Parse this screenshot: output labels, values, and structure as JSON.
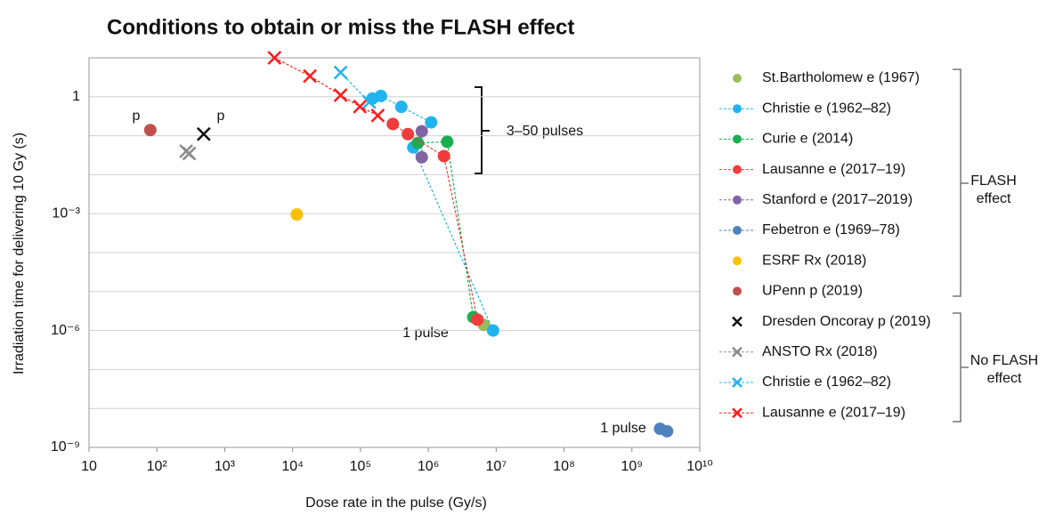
{
  "chart_data": {
    "type": "scatter",
    "title": "Conditions to obtain or miss the FLASH effect",
    "x_label": "Dose rate in the pulse (Gy/s)",
    "y_label": "Irradiation time for delivering 10 Gy (s)",
    "x_scale": "log",
    "y_scale": "log",
    "grid": true,
    "xlim": [
      10,
      10000000000
    ],
    "ylim": [
      1e-09,
      10
    ],
    "xticks": [
      10,
      {
        "value": 100,
        "label": "10²"
      },
      {
        "value": 1000,
        "label": "10³"
      },
      {
        "value": 10000,
        "label": "10⁴"
      },
      {
        "value": 100000,
        "label": "10⁵"
      },
      {
        "value": 1000000,
        "label": "10⁶"
      },
      {
        "value": 10000000,
        "label": "10⁷"
      },
      {
        "value": 100000000,
        "label": "10⁸"
      },
      {
        "value": 1000000000,
        "label": "10⁹"
      },
      {
        "value": 10000000000,
        "label": "10¹⁰"
      }
    ],
    "yticks": [
      1,
      {
        "value": 0.001,
        "label": "10⁻³"
      },
      {
        "value": 1e-06,
        "label": "10⁻⁶"
      },
      {
        "value": 1e-09,
        "label": "10⁻⁹"
      }
    ],
    "yminor": [
      10,
      0.1,
      0.01,
      0.0001,
      1e-05,
      1e-07,
      1e-08
    ],
    "series": [
      {
        "name": "St.Bartholomew e (1967)",
        "color": "#9bbb59",
        "marker": "o",
        "dashed": false,
        "x": [
          6600000
        ],
        "y": [
          1.4e-06
        ]
      },
      {
        "name": "Christie e (1962–82)",
        "color": "#1fb4ef",
        "marker": "o",
        "dashed": true,
        "x": [
          150000,
          200000,
          400000,
          1100000,
          600000,
          9000000
        ],
        "y": [
          0.9,
          1.05,
          0.55,
          0.22,
          0.05,
          1e-06
        ]
      },
      {
        "name": "Curie e (2014)",
        "color": "#1aae4f",
        "marker": "o",
        "dashed": true,
        "x": [
          700000,
          1900000,
          4600000
        ],
        "y": [
          0.065,
          0.07,
          2.2e-06
        ]
      },
      {
        "name": "Lausanne e (2017–19)",
        "color": "#f03c3c",
        "marker": "o",
        "dashed": true,
        "x": [
          300000,
          500000,
          1700000,
          5300000
        ],
        "y": [
          0.2,
          0.11,
          0.03,
          1.9e-06
        ]
      },
      {
        "name": "Stanford e (2017–2019)",
        "color": "#8064a2",
        "marker": "o",
        "dashed": true,
        "x": [
          800000,
          800000
        ],
        "y": [
          0.13,
          0.028
        ]
      },
      {
        "name": "Febetron e (1969–78)",
        "color": "#4f81bd",
        "marker": "o",
        "dashed": true,
        "x": [
          2600000000,
          3300000000
        ],
        "y": [
          3e-09,
          2.6e-09
        ]
      },
      {
        "name": "ESRF Rx (2018)",
        "color": "#ffc000",
        "marker": "o",
        "dashed": false,
        "x": [
          11500
        ],
        "y": [
          0.00095
        ]
      },
      {
        "name": "UPenn p (2019)",
        "color": "#c0504d",
        "marker": "o",
        "dashed": false,
        "x": [
          80
        ],
        "y": [
          0.14
        ]
      },
      {
        "name": "Dresden Oncoray p (2019)",
        "color": "#111111",
        "marker": "x",
        "dashed": false,
        "x": [
          490
        ],
        "y": [
          0.11
        ]
      },
      {
        "name": "ANSTO Rx (2018)",
        "color": "#8c8c8c",
        "marker": "x",
        "dashed": true,
        "x": [
          270,
          300
        ],
        "y": [
          0.04,
          0.035
        ]
      },
      {
        "name": "Christie e (1962–82)",
        "color": "#1fb4ef",
        "marker": "x",
        "dashed": true,
        "x": [
          51000,
          135000
        ],
        "y": [
          4.2,
          0.73
        ]
      },
      {
        "name": "Lausanne e (2017–19)",
        "color": "#ff1a1a",
        "marker": "x",
        "dashed": true,
        "x": [
          5400,
          18000,
          51000,
          98000,
          180000
        ],
        "y": [
          10,
          3.4,
          1.1,
          0.56,
          0.33
        ]
      }
    ],
    "annotations": [
      "p",
      "p",
      "3–50 pulses",
      "1 pulse",
      "1 pulse"
    ],
    "flash_label": [
      "FLASH",
      "effect"
    ],
    "no_flash_label": [
      "No FLASH",
      "effect"
    ]
  }
}
